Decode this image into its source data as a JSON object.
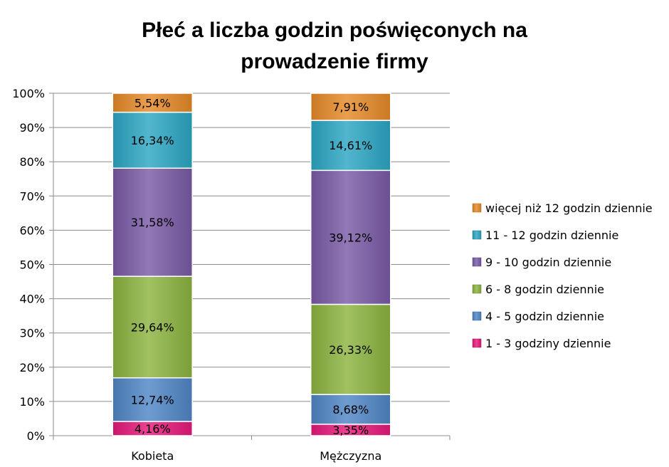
{
  "chart_data": {
    "type": "bar",
    "stacked": true,
    "percent": true,
    "title_lines": [
      "Płeć a liczba godzin poświęconych na",
      "prowadzenie firmy"
    ],
    "categories": [
      "Kobieta",
      "Mężczyzna"
    ],
    "ylim": [
      0,
      100
    ],
    "yticks": [
      "0%",
      "10%",
      "20%",
      "30%",
      "40%",
      "50%",
      "60%",
      "70%",
      "80%",
      "90%",
      "100%"
    ],
    "grid": true,
    "legend_position": "right",
    "series": [
      {
        "name": "1 - 3 godziny dziennie",
        "color": "#e6197a",
        "values": [
          4.16,
          3.35
        ],
        "labels": [
          "4,16%",
          "3,35%"
        ]
      },
      {
        "name": "4 - 5 godzin dziennie",
        "color": "#4f86c6",
        "values": [
          12.74,
          8.68
        ],
        "labels": [
          "12,74%",
          "8,68%"
        ]
      },
      {
        "name": "6 - 8 godzin dziennie",
        "color": "#8cb33f",
        "values": [
          29.64,
          26.33
        ],
        "labels": [
          "29,64%",
          "26,33%"
        ]
      },
      {
        "name": "9 - 10 godzin dziennie",
        "color": "#7a5aa6",
        "values": [
          31.58,
          39.12
        ],
        "labels": [
          "31,58%",
          "39,12%"
        ]
      },
      {
        "name": "11 - 12 godzin dziennie",
        "color": "#2ba6c3",
        "values": [
          16.34,
          14.61
        ],
        "labels": [
          "16,34%",
          "14,61%"
        ]
      },
      {
        "name": "więcej niż 12 godzin dziennie",
        "color": "#e58a27",
        "values": [
          5.54,
          7.91
        ],
        "labels": [
          "5,54%",
          "7,91%"
        ]
      }
    ]
  }
}
